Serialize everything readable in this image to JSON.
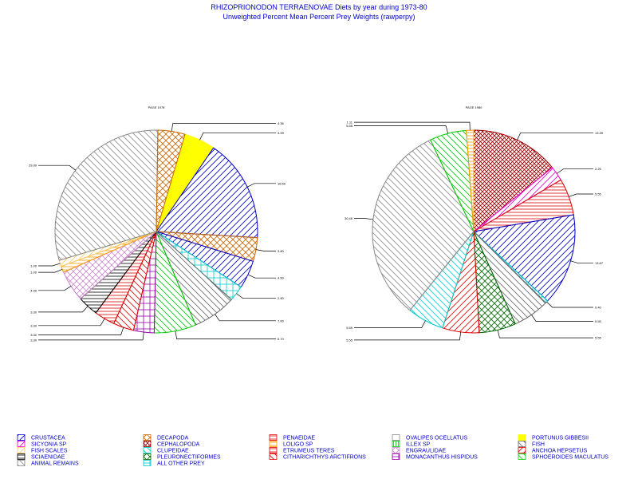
{
  "title": "RHIZOPRIONODON TERRAENOVAE Diets by year during 1973-80",
  "subtitle": "Unweighted Percent Mean Percent Prey  Weights (rawperpy)",
  "chart_data": [
    {
      "type": "pie",
      "title": "PAGE 1978",
      "slices": [
        {
          "category": "PORTUNUS GIBBESII",
          "value": 4.99
        },
        {
          "category": "CRUSTACEA",
          "value": 16.5
        },
        {
          "category": "DECAPODA",
          "value": 3.8
        },
        {
          "category": "CRUSTACEA",
          "value": 4.5
        },
        {
          "category": "ALL OTHER PREY",
          "value": 2.5
        },
        {
          "category": "FISH",
          "value": 7.0
        },
        {
          "category": "SPHOEROIDES MACULATUS",
          "value": 6.7
        },
        {
          "category": "MONACANTHUS HISPIDUS",
          "value": 3.3
        },
        {
          "category": "CITHARICHTHYS ARCTIFRONS",
          "value": 3.3
        },
        {
          "category": "PENAEIDAE",
          "value": 3.3
        },
        {
          "category": "SCIAENIDAE",
          "value": 3.3
        },
        {
          "category": "ENGRAULIDAE",
          "value": 4.99
        },
        {
          "category": "LOLIGO SP",
          "value": 1.0
        },
        {
          "category": "FISH SCALES",
          "value": 1.0
        },
        {
          "category": "ANIMAL REMAINS",
          "value": 29.99
        },
        {
          "category": "DECAPODA",
          "value": 4.36
        }
      ],
      "labels": [
        "4.99",
        "16.50",
        "3.80",
        "4.50",
        "2.50",
        "7.00",
        "6.70",
        "3.30",
        "3.30",
        "3.30",
        "3.30",
        "4.99",
        "1.00",
        "1.00",
        "29.99",
        "4.36"
      ]
    },
    {
      "type": "pie",
      "title": "PAGE 1980",
      "slices": [
        {
          "category": "CEPHALOPODA",
          "value": 13.39
        },
        {
          "category": "SICYONIA SP",
          "value": 2.25
        },
        {
          "category": "PENAEIDAE",
          "value": 5.55
        },
        {
          "category": "CRUSTACEA",
          "value": 13.87
        },
        {
          "category": "ALL OTHER PREY",
          "value": 0.4
        },
        {
          "category": "FISH",
          "value": 5.55
        },
        {
          "category": "PLEURONECTIFORMES",
          "value": 5.55
        },
        {
          "category": "ANCHOA HEPSETUS",
          "value": 5.55
        },
        {
          "category": "CLUPEIDAE",
          "value": 5.55
        },
        {
          "category": "ANIMAL REMAINS",
          "value": 30.46
        },
        {
          "category": "SPHOEROIDES MACULATUS",
          "value": 5.55
        },
        {
          "category": "LOLIGO SP",
          "value": 1.11
        }
      ],
      "labels": [
        "13.39",
        "2.25",
        "5.55",
        "13.87",
        "0.40",
        "5.55",
        "5.55",
        "5.55",
        "5.55",
        "30.46",
        "5.55",
        "1.11"
      ]
    }
  ],
  "legend": [
    {
      "label": "CRUSTACEA",
      "color": "#0000cc",
      "pattern": "right"
    },
    {
      "label": "DECAPODA",
      "color": "#cc6600",
      "pattern": "cross"
    },
    {
      "label": "PENAEIDAE",
      "color": "#dd0000",
      "pattern": "horiz"
    },
    {
      "label": "OVALIPES OCELLATUS",
      "color": "#888888",
      "pattern": "outline"
    },
    {
      "label": "PORTUNUS GIBBESII",
      "color": "#ffff00",
      "pattern": "solid"
    },
    {
      "label": "SICYONIA SP",
      "color": "#ee00cc",
      "pattern": "right"
    },
    {
      "label": "CEPHALOPODA",
      "color": "#990000",
      "pattern": "crossdense"
    },
    {
      "label": "LOLIGO SP",
      "color": "#ff9900",
      "pattern": "horiz"
    },
    {
      "label": "ILLEX SP",
      "color": "#00cc00",
      "pattern": "vert"
    },
    {
      "label": "FISH",
      "color": "#666666",
      "pattern": "left"
    },
    {
      "label": "FISH SCALES",
      "color": "#ffcc66",
      "pattern": "right"
    },
    {
      "label": "CLUPEIDAE",
      "color": "#00cccc",
      "pattern": "left"
    },
    {
      "label": "ETRUMEUS TERES",
      "color": "#dd0000",
      "pattern": "horiz"
    },
    {
      "label": "ENGRAULIDAE",
      "color": "#cc88cc",
      "pattern": "crossdiag"
    },
    {
      "label": "ANCHOA HEPSETUS",
      "color": "#dd0000",
      "pattern": "right"
    },
    {
      "label": "SCIAENIDAE",
      "color": "#000000",
      "pattern": "horiz"
    },
    {
      "label": "PLEURONECTIFORMES",
      "color": "#006600",
      "pattern": "crossdiag"
    },
    {
      "label": "CITHARICHTHYS ARCTIFRONS",
      "color": "#dd0000",
      "pattern": "left"
    },
    {
      "label": "MONACANTHUS HISPIDUS",
      "color": "#9900aa",
      "pattern": "grid"
    },
    {
      "label": "SPHOEROIDES MACULATUS",
      "color": "#00cc00",
      "pattern": "left"
    },
    {
      "label": "ANIMAL REMAINS",
      "color": "#888888",
      "pattern": "left"
    },
    {
      "label": "ALL OTHER PREY",
      "color": "#00cccc",
      "pattern": "grid"
    }
  ]
}
